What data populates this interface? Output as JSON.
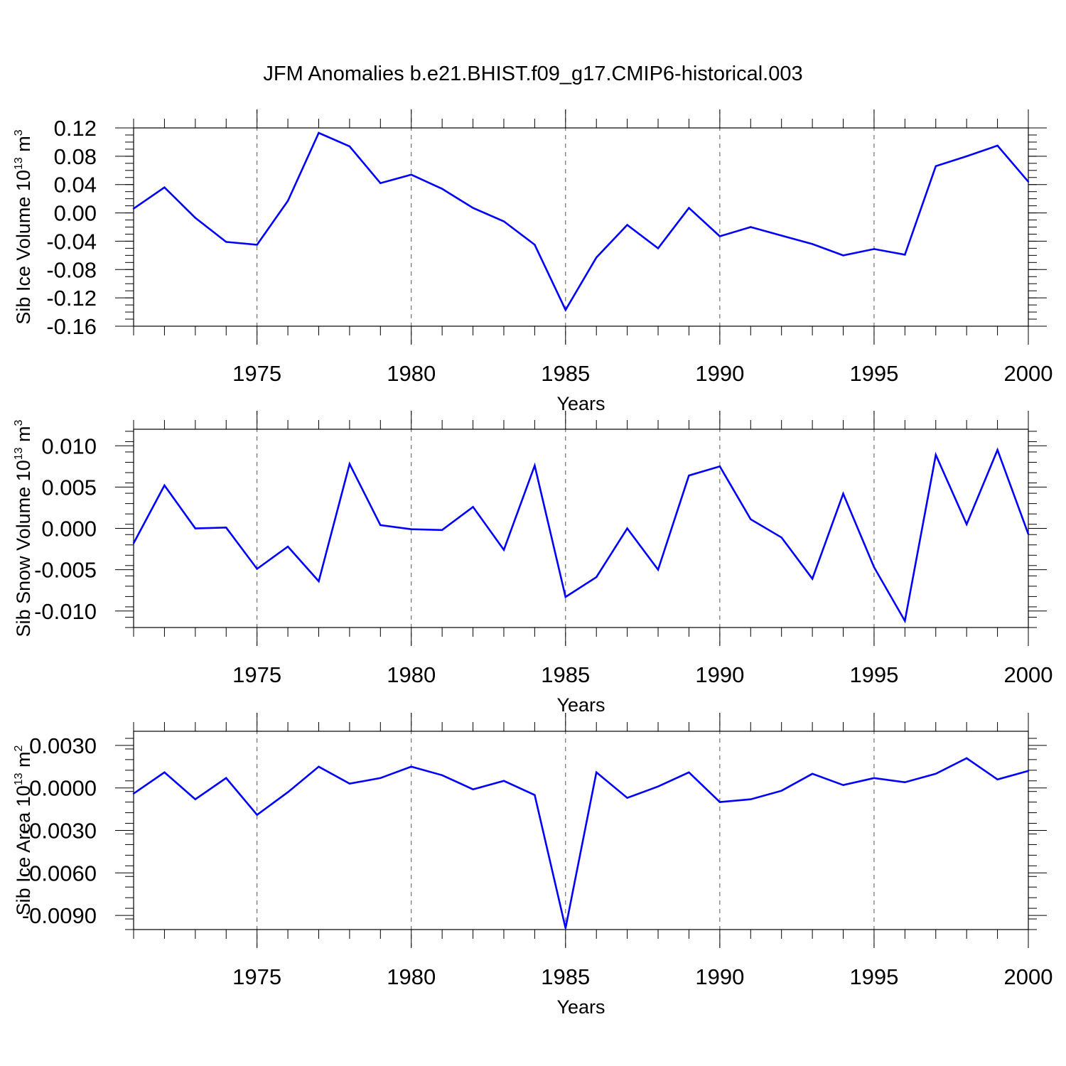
{
  "title": "JFM Anomalies b.e21.BHIST.f09_g17.CMIP6-historical.003",
  "colors": {
    "line": "#0000ff",
    "axis": "#000000",
    "grid": "#555555",
    "background": "#ffffff"
  },
  "chart_data": [
    {
      "type": "line",
      "ylabel": "Sib Ice Volume 10",
      "ylabel_sup": "13",
      "ylabel_unit": " m",
      "ylabel_unit_sup": "3",
      "xlabel": "Years",
      "xlim": [
        1971,
        2000
      ],
      "ylim": [
        -0.16,
        0.12
      ],
      "yticks": [
        -0.16,
        -0.12,
        -0.08,
        -0.04,
        0.0,
        0.04,
        0.08,
        0.12
      ],
      "ytick_labels": [
        "-0.16",
        "-0.12",
        "-0.08",
        "-0.04",
        "0.00",
        "0.04",
        "0.08",
        "0.12"
      ],
      "xticks": [
        1975,
        1980,
        1985,
        1990,
        1995,
        2000
      ],
      "xtick_labels": [
        "1975",
        "1980",
        "1985",
        "1990",
        "1995",
        "2000"
      ],
      "grid_x": true,
      "x": [
        1971,
        1972,
        1973,
        1974,
        1975,
        1976,
        1977,
        1978,
        1979,
        1980,
        1981,
        1982,
        1983,
        1984,
        1985,
        1986,
        1987,
        1988,
        1989,
        1990,
        1991,
        1992,
        1993,
        1994,
        1995,
        1996,
        1997,
        1998,
        1999,
        2000
      ],
      "values": [
        0.006,
        0.036,
        -0.007,
        -0.041,
        -0.045,
        0.017,
        0.113,
        0.094,
        0.042,
        0.054,
        0.034,
        0.007,
        -0.012,
        -0.045,
        -0.137,
        -0.063,
        -0.017,
        -0.05,
        0.007,
        -0.033,
        -0.02,
        -0.032,
        -0.044,
        -0.06,
        -0.051,
        -0.059,
        0.066,
        0.08,
        0.095,
        0.044
      ]
    },
    {
      "type": "line",
      "ylabel": "Sib Snow Volume 10",
      "ylabel_sup": "13",
      "ylabel_unit": " m",
      "ylabel_unit_sup": "3",
      "xlabel": "Years",
      "xlim": [
        1971,
        2000
      ],
      "ylim": [
        -0.012,
        0.012
      ],
      "yticks": [
        -0.01,
        -0.005,
        0.0,
        0.005,
        0.01
      ],
      "ytick_labels": [
        "-0.010",
        "-0.005",
        "0.000",
        "0.005",
        "0.010"
      ],
      "xticks": [
        1975,
        1980,
        1985,
        1990,
        1995,
        2000
      ],
      "xtick_labels": [
        "1975",
        "1980",
        "1985",
        "1990",
        "1995",
        "2000"
      ],
      "grid_x": true,
      "x": [
        1971,
        1972,
        1973,
        1974,
        1975,
        1976,
        1977,
        1978,
        1979,
        1980,
        1981,
        1982,
        1983,
        1984,
        1985,
        1986,
        1987,
        1988,
        1989,
        1990,
        1991,
        1992,
        1993,
        1994,
        1995,
        1996,
        1997,
        1998,
        1999,
        2000
      ],
      "values": [
        -0.0018,
        0.0052,
        0.0,
        0.0001,
        -0.0049,
        -0.0022,
        -0.0064,
        0.0078,
        0.0004,
        -0.0001,
        -0.0002,
        0.0026,
        -0.0026,
        0.0076,
        -0.0083,
        -0.0059,
        0.0,
        -0.005,
        0.0064,
        0.0075,
        0.0011,
        -0.0011,
        -0.0061,
        0.0042,
        -0.0047,
        -0.0112,
        0.0089,
        0.0005,
        0.0095,
        -0.0007
      ]
    },
    {
      "type": "line",
      "ylabel": "Sib Ice Area 10",
      "ylabel_sup": "13",
      "ylabel_unit": " m",
      "ylabel_unit_sup": "2",
      "xlabel": "Years",
      "xlim": [
        1971,
        2000
      ],
      "ylim": [
        -0.01,
        0.004
      ],
      "yticks": [
        -0.009,
        -0.006,
        -0.003,
        0.0,
        0.003
      ],
      "ytick_labels": [
        "-0.0090",
        "-0.0060",
        "-0.0030",
        "0.0000",
        "0.0030"
      ],
      "xticks": [
        1975,
        1980,
        1985,
        1990,
        1995,
        2000
      ],
      "xtick_labels": [
        "1975",
        "1980",
        "1985",
        "1990",
        "1995",
        "2000"
      ],
      "grid_x": true,
      "x": [
        1971,
        1972,
        1973,
        1974,
        1975,
        1976,
        1977,
        1978,
        1979,
        1980,
        1981,
        1982,
        1983,
        1984,
        1985,
        1986,
        1987,
        1988,
        1989,
        1990,
        1991,
        1992,
        1993,
        1994,
        1995,
        1996,
        1997,
        1998,
        1999,
        2000
      ],
      "values": [
        -0.0004,
        0.0011,
        -0.0008,
        0.0007,
        -0.0019,
        -0.0003,
        0.0015,
        0.0003,
        0.0007,
        0.0015,
        0.0009,
        -0.0001,
        0.0005,
        -0.0005,
        -0.0099,
        0.0011,
        -0.0007,
        0.0001,
        0.0011,
        -0.001,
        -0.0008,
        -0.0002,
        0.001,
        0.0002,
        0.0007,
        0.0004,
        0.001,
        0.0021,
        0.0006,
        0.0012
      ]
    }
  ]
}
